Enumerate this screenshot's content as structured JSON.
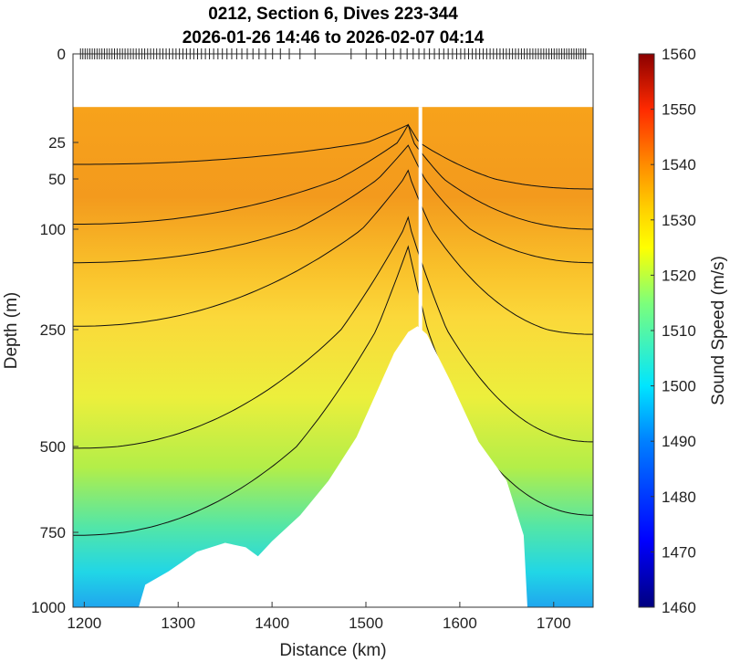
{
  "chart_data": {
    "type": "contour",
    "title_line1": "0212, Section 6, Dives 223-344",
    "title_line2": "2026-01-26 14:46 to 2026-02-07 04:14",
    "xlabel": "Distance (km)",
    "ylabel": "Depth (m)",
    "xlim": [
      1188,
      1742
    ],
    "x_ticks": [
      1200,
      1300,
      1400,
      1500,
      1600,
      1700
    ],
    "x_tick_labels": [
      "1200",
      "1300",
      "1400",
      "1500",
      "1600",
      "1700"
    ],
    "y_ticks": [
      0,
      25,
      50,
      100,
      250,
      500,
      750,
      1000
    ],
    "y_tick_labels": [
      "0",
      "25",
      "50",
      "100",
      "250",
      "500",
      "750",
      "1000"
    ],
    "colorbar": {
      "label": "Sound Speed (m/s)",
      "range": [
        1460,
        1560
      ],
      "ticks": [
        1460,
        1470,
        1480,
        1490,
        1500,
        1510,
        1520,
        1530,
        1540,
        1550,
        1560
      ],
      "tick_labels": [
        "1460",
        "1470",
        "1480",
        "1490",
        "1500",
        "1510",
        "1520",
        "1530",
        "1540",
        "1550",
        "1560"
      ]
    },
    "contour_levels_ms": [
      1505,
      1515,
      1520,
      1525,
      1530,
      1535
    ],
    "data_top_depth_m": 15,
    "bathymetry": [
      {
        "distance_km": 1188,
        "depth_m": 1000
      },
      {
        "distance_km": 1258,
        "depth_m": 1000
      },
      {
        "distance_km": 1265,
        "depth_m": 925
      },
      {
        "distance_km": 1290,
        "depth_m": 880
      },
      {
        "distance_km": 1320,
        "depth_m": 815
      },
      {
        "distance_km": 1350,
        "depth_m": 785
      },
      {
        "distance_km": 1372,
        "depth_m": 800
      },
      {
        "distance_km": 1385,
        "depth_m": 830
      },
      {
        "distance_km": 1400,
        "depth_m": 780
      },
      {
        "distance_km": 1430,
        "depth_m": 700
      },
      {
        "distance_km": 1460,
        "depth_m": 600
      },
      {
        "distance_km": 1490,
        "depth_m": 480
      },
      {
        "distance_km": 1510,
        "depth_m": 390
      },
      {
        "distance_km": 1530,
        "depth_m": 300
      },
      {
        "distance_km": 1545,
        "depth_m": 255
      },
      {
        "distance_km": 1555,
        "depth_m": 245
      },
      {
        "distance_km": 1565,
        "depth_m": 260
      },
      {
        "distance_km": 1590,
        "depth_m": 360
      },
      {
        "distance_km": 1620,
        "depth_m": 490
      },
      {
        "distance_km": 1650,
        "depth_m": 600
      },
      {
        "distance_km": 1668,
        "depth_m": 760
      },
      {
        "distance_km": 1672,
        "depth_m": 1000
      }
    ],
    "gap_distance_km": 1558,
    "dive_marker_count": 122
  }
}
